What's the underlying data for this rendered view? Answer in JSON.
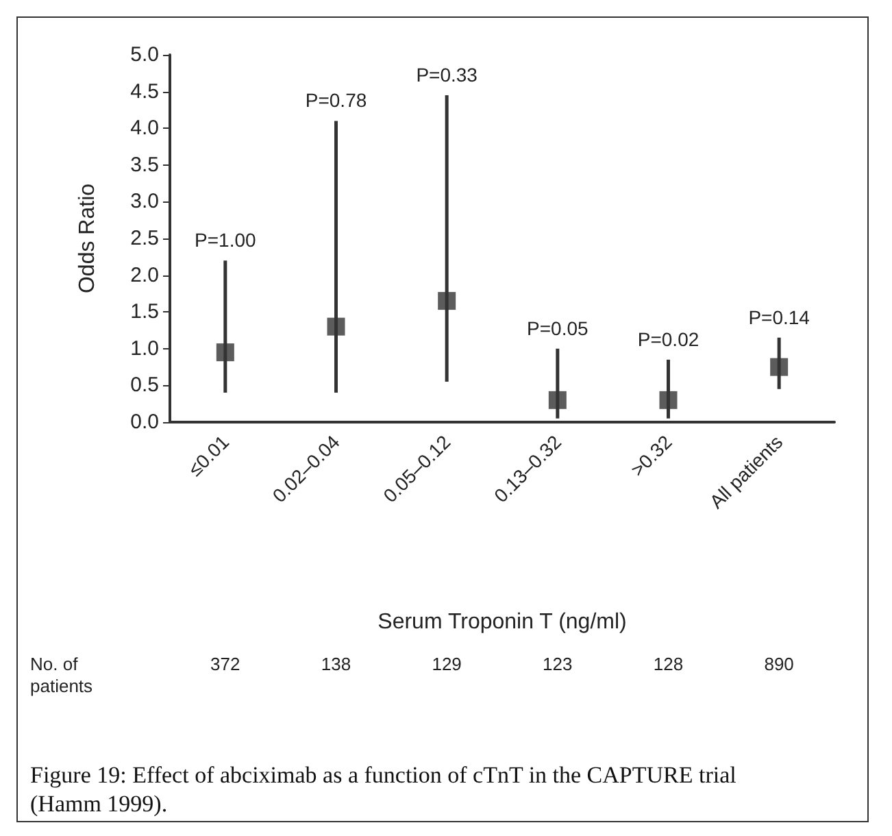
{
  "chart_data": {
    "type": "scatter",
    "xlabel": "Serum Troponin T (ng/ml)",
    "ylabel": "Odds Ratio",
    "categories": [
      "≤0.01",
      "0.02–0.04",
      "0.05–0.12",
      "0.13–0.32",
      ">0.32",
      "All patients"
    ],
    "values": [
      0.95,
      1.3,
      1.65,
      0.3,
      0.3,
      0.75
    ],
    "errors": [
      [
        0.4,
        2.2
      ],
      [
        0.4,
        4.1
      ],
      [
        0.55,
        4.45
      ],
      [
        0.05,
        1.0
      ],
      [
        0.05,
        0.85
      ],
      [
        0.45,
        1.15
      ]
    ],
    "color": "#333333",
    "marker": "square",
    "grid": false,
    "ylim": [
      0,
      5
    ],
    "yticks": [
      {
        "value": 0,
        "label": "0.0"
      },
      {
        "value": 0.5,
        "label": "0.5"
      },
      {
        "value": 1,
        "label": "1.0"
      },
      {
        "value": 1.5,
        "label": "1.5"
      },
      {
        "value": 2,
        "label": "2.0"
      },
      {
        "value": 2.5,
        "label": "2.5"
      },
      {
        "value": 3,
        "label": "3.0"
      },
      {
        "value": 3.5,
        "label": "3.5"
      },
      {
        "value": 4,
        "label": "4.0"
      },
      {
        "value": 4.5,
        "label": "4.5"
      },
      {
        "value": 5,
        "label": "5.0"
      }
    ],
    "annotations": [
      {
        "text": "P=1.00",
        "x": "≤0.01",
        "y": 2.2
      },
      {
        "text": "P=0.78",
        "x": "0.02–0.04",
        "y": 4.1
      },
      {
        "text": "P=0.33",
        "x": "0.05–0.12",
        "y": 4.45
      },
      {
        "text": "P=0.05",
        "x": "0.13–0.32",
        "y": 1.0
      },
      {
        "text": "P=0.02",
        "x": ">0.32",
        "y": 0.85
      },
      {
        "text": "P=0.14",
        "x": "All patients",
        "y": 1.15
      },
      "No. of patients",
      "372",
      "138",
      "129",
      "123",
      "128",
      "890",
      "Figure 19: Effect of abciximab as a function of cTnT in the CAPTURE trial (Hamm 1999)."
    ]
  }
}
